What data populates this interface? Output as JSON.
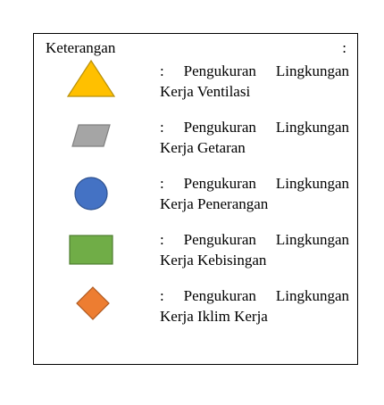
{
  "legend": {
    "title": "Keterangan",
    "colon": ":",
    "items": [
      {
        "shape": "triangle",
        "color": "#FFC000",
        "stroke": "#B8900A",
        "line1": ": Pengukuran Lingkungan",
        "line2": "Kerja Ventilasi"
      },
      {
        "shape": "parallelogram",
        "color": "#A5A5A5",
        "stroke": "#7F7F7F",
        "line1": ": Pengukuran Lingkungan",
        "line2": "Kerja Getaran"
      },
      {
        "shape": "circle",
        "color": "#4472C4",
        "stroke": "#2F528F",
        "line1": ": Pengukuran Lingkungan",
        "line2": "Kerja Penerangan"
      },
      {
        "shape": "rectangle",
        "color": "#70AD47",
        "stroke": "#507E32",
        "line1": ": Pengukuran Lingkungan",
        "line2": "Kerja Kebisingan"
      },
      {
        "shape": "diamond",
        "color": "#ED7D31",
        "stroke": "#AE5A21",
        "line1": ": Pengukuran Lingkungan",
        "line2": "Kerja Iklim Kerja"
      }
    ]
  }
}
